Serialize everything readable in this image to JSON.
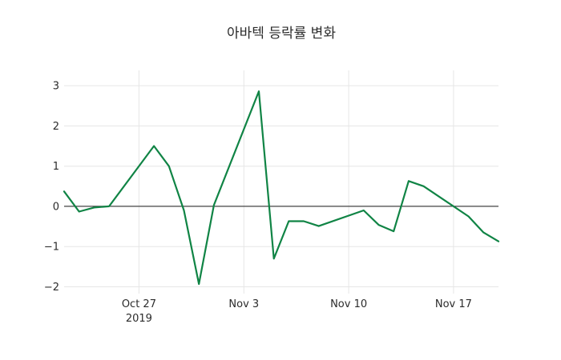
{
  "title": "아바텍 등락률 변화",
  "chart_data": {
    "type": "line",
    "title": "아바텍 등락률 변화",
    "series": [
      {
        "name": "등락률",
        "color": "#108445",
        "dates": [
          "2019-10-22",
          "2019-10-23",
          "2019-10-24",
          "2019-10-25",
          "2019-10-28",
          "2019-10-29",
          "2019-10-30",
          "2019-10-31",
          "2019-11-01",
          "2019-11-04",
          "2019-11-05",
          "2019-11-06",
          "2019-11-07",
          "2019-11-08",
          "2019-11-11",
          "2019-11-12",
          "2019-11-13",
          "2019-11-14",
          "2019-11-15",
          "2019-11-18",
          "2019-11-19",
          "2019-11-20"
        ],
        "values": [
          0.37,
          -0.13,
          -0.03,
          0.0,
          1.5,
          1.0,
          -0.1,
          -1.93,
          0.03,
          2.86,
          -1.3,
          -0.37,
          -0.37,
          -0.49,
          -0.1,
          -0.46,
          -0.62,
          0.63,
          0.5,
          -0.25,
          -0.65,
          -0.87
        ]
      }
    ],
    "x_ticks": [
      {
        "date": "2019-10-27",
        "label": "Oct 27",
        "sublabel": "2019"
      },
      {
        "date": "2019-11-03",
        "label": "Nov 3"
      },
      {
        "date": "2019-11-10",
        "label": "Nov 10"
      },
      {
        "date": "2019-11-17",
        "label": "Nov 17"
      }
    ],
    "y_ticks": [
      3,
      2,
      1,
      0,
      -1,
      -2
    ],
    "ylim": [
      -2.07,
      3.38
    ],
    "grid": true,
    "zero_line": true,
    "legend": "none",
    "colors": {
      "line": "#108445",
      "grid": "#e6e6e6",
      "zero_line": "#444444",
      "text": "#2b2b2b"
    }
  }
}
